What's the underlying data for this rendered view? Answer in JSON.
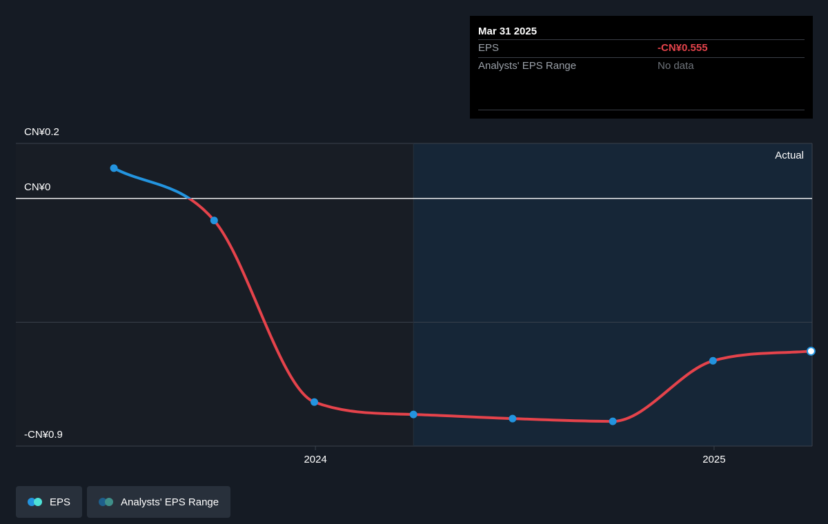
{
  "tooltip": {
    "date": "Mar 31 2025",
    "rows": [
      {
        "label": "EPS",
        "value": "-CN¥0.555"
      },
      {
        "label": "Analysts' EPS Range",
        "value": "No data"
      }
    ]
  },
  "legend": [
    {
      "label": "EPS",
      "colors": [
        "#2394df",
        "#4ee1d6"
      ]
    },
    {
      "label": "Analysts' EPS Range",
      "colors": [
        "#1e5f8c",
        "#3f8f89"
      ]
    }
  ],
  "colors": {
    "eps_positive": "#2394df",
    "eps_negative": "#e5434b",
    "point": "#2394df",
    "zero_line": "#ffffff"
  },
  "chart_data": {
    "type": "line",
    "region_label": "Actual",
    "y_tick_labels": [
      {
        "value": 0.2,
        "label": "CN¥0.2"
      },
      {
        "value": 0,
        "label": "CN¥0"
      },
      {
        "value": -0.9,
        "label": "-CN¥0.9"
      }
    ],
    "x_tick_labels": [
      {
        "value": "2024-01-01",
        "label": "2024"
      },
      {
        "value": "2025-01-01",
        "label": "2025"
      }
    ],
    "ylim": [
      -0.9,
      0.2
    ],
    "xlim": [
      "2023-04-01",
      "2025-04-01"
    ],
    "series": [
      {
        "name": "EPS",
        "x": [
          "2023-06-30",
          "2023-09-30",
          "2023-12-31",
          "2024-03-31",
          "2024-06-30",
          "2024-09-30",
          "2024-12-31",
          "2025-03-31"
        ],
        "y": [
          0.11,
          -0.08,
          -0.74,
          -0.785,
          -0.8,
          -0.81,
          -0.59,
          -0.555
        ]
      }
    ]
  }
}
